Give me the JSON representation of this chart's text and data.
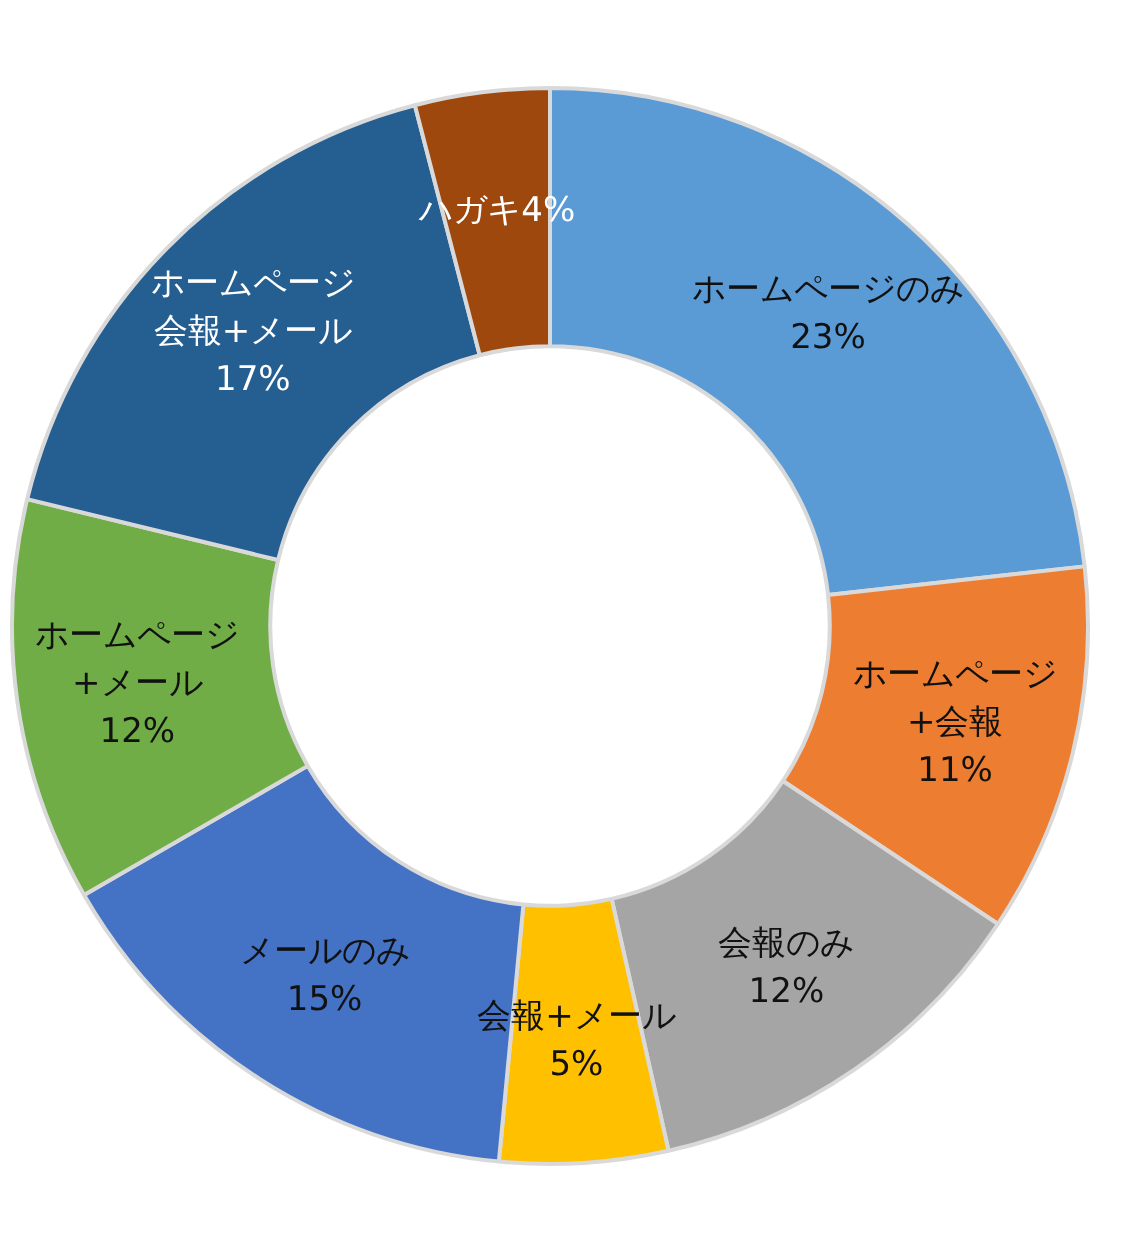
{
  "chart_data": {
    "type": "donut",
    "categories": [
      "ホームページのみ",
      "ホームページ+会報",
      "会報のみ",
      "会報+メール",
      "メールのみ",
      "ホームページ+メール",
      "ホームページ会報+メール",
      "ハガキ"
    ],
    "values": [
      23,
      11,
      12,
      5,
      15,
      12,
      17,
      4
    ],
    "colors": [
      "#5b9bd5",
      "#ed7d31",
      "#a5a5a5",
      "#ffc000",
      "#4472c4",
      "#70ad47",
      "#255e91",
      "#9e480e"
    ],
    "value_labels": [
      "23%",
      "11%",
      "12%",
      "5%",
      "15%",
      "12%",
      "17%",
      "4%"
    ]
  }
}
